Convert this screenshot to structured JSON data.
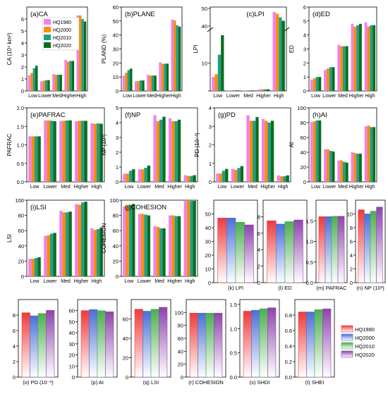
{
  "colors": {
    "HQ1980": "#ee82ee",
    "HQ2000": "#ff8c00",
    "HQ2010": "#1f9e89",
    "HQ2020": "#0b6e1e",
    "grad_top": [
      "#ee3b3b",
      "#4a6fd8",
      "#4caf50",
      "#8e44ad"
    ],
    "grad_bottom": "#ffffff"
  },
  "class_legend": [
    "HQ1980",
    "HQ2000",
    "HQ2010",
    "HQ2020"
  ],
  "landscape_legend": [
    "HQ1980",
    "HQ2000",
    "HQ2010",
    "HQ2020"
  ],
  "chart_data": [
    {
      "id": "a",
      "type": "bar",
      "title": "(a)CA",
      "ylabel": "CA (10⁴ km²)",
      "categories": [
        "Low",
        "Lower",
        "Med",
        "Higher",
        "High"
      ],
      "ylim": [
        0,
        7
      ],
      "ticks": [
        0,
        1,
        2,
        3,
        4,
        5,
        6
      ],
      "values": [
        [
          1.3,
          1.5,
          1.9,
          2.1
        ],
        [
          0.8,
          0.85,
          0.9,
          0.9
        ],
        [
          1.4,
          1.35,
          1.35,
          1.35
        ],
        [
          2.6,
          2.45,
          2.5,
          2.5
        ],
        [
          6.3,
          6.3,
          6.0,
          5.8
        ]
      ]
    },
    {
      "id": "b",
      "type": "bar",
      "title": "(b)PLANE",
      "ylabel": "PLAND (%)",
      "categories": [
        "Low",
        "Lower",
        "Med",
        "Higher",
        "High"
      ],
      "ylim": [
        0,
        60
      ],
      "ticks": [
        0,
        10,
        20,
        30,
        40,
        50,
        60
      ],
      "values": [
        [
          11,
          13,
          15,
          16
        ],
        [
          7,
          7,
          7.5,
          7.5
        ],
        [
          11.5,
          11,
          11,
          11
        ],
        [
          20.5,
          19.5,
          19.5,
          19.5
        ],
        [
          51,
          50.5,
          47,
          46
        ]
      ]
    },
    {
      "id": "c",
      "type": "bar",
      "title": "(c)LPI",
      "ylabel": "LPI",
      "categories": [
        "Low",
        "Lower",
        "Med",
        "Higher",
        "High"
      ],
      "broken_axis": true,
      "ticks": [
        0,
        10,
        40,
        50
      ],
      "values": [
        [
          5,
          6,
          13,
          20
        ],
        [
          0.1,
          0.2,
          0.2,
          0.2
        ],
        [
          0.1,
          0.2,
          0.2,
          0.2
        ],
        [
          0.5,
          0.6,
          0.6,
          0.6
        ],
        [
          48,
          47,
          45,
          43
        ]
      ]
    },
    {
      "id": "d",
      "type": "bar",
      "title": "(d)ED",
      "ylabel": "ED",
      "categories": [
        "Low",
        "Lower",
        "Med",
        "Higher",
        "High"
      ],
      "ylim": [
        0,
        6
      ],
      "ticks": [
        0,
        1,
        2,
        3,
        4,
        5,
        6
      ],
      "values": [
        [
          0.8,
          0.9,
          1.0,
          1.0
        ],
        [
          1.5,
          1.6,
          1.7,
          1.7
        ],
        [
          3.3,
          3.2,
          3.2,
          3.2
        ],
        [
          4.8,
          4.6,
          4.7,
          4.8
        ],
        [
          4.9,
          4.6,
          4.7,
          4.7
        ]
      ]
    },
    {
      "id": "e",
      "type": "bar",
      "title": "(e)PAFRAC",
      "ylabel": "PAFRAC",
      "categories": [
        "Low",
        "Lower",
        "Med",
        "Higher",
        "High"
      ],
      "ylim": [
        0,
        2.0
      ],
      "ticks": [
        0.0,
        0.5,
        1.0,
        1.5,
        2.0
      ],
      "values": [
        [
          1.23,
          1.23,
          1.23,
          1.23
        ],
        [
          1.66,
          1.66,
          1.65,
          1.64
        ],
        [
          1.65,
          1.65,
          1.66,
          1.66
        ],
        [
          1.64,
          1.65,
          1.65,
          1.65
        ],
        [
          1.58,
          1.57,
          1.58,
          1.57
        ]
      ]
    },
    {
      "id": "f",
      "type": "bar",
      "title": "(f)NP",
      "ylabel": "NP (10³)",
      "categories": [
        "Low",
        "Lower",
        "Med",
        "Higher",
        "High"
      ],
      "ylim": [
        0,
        5
      ],
      "ticks": [
        0,
        1,
        2,
        3,
        4,
        5
      ],
      "values": [
        [
          0.55,
          0.55,
          0.75,
          0.85
        ],
        [
          0.85,
          0.85,
          0.95,
          1.1
        ],
        [
          4.5,
          4.1,
          4.2,
          4.4
        ],
        [
          4.3,
          4.1,
          4.1,
          4.2
        ],
        [
          0.45,
          0.4,
          0.4,
          0.45
        ]
      ]
    },
    {
      "id": "g",
      "type": "bar",
      "title": "(g)PD",
      "ylabel": "PD (10⁻²)",
      "categories": [
        "Low",
        "Lower",
        "Med",
        "Higher",
        "High"
      ],
      "ylim": [
        0,
        4
      ],
      "ticks": [
        0,
        1,
        2,
        3,
        4
      ],
      "values": [
        [
          0.45,
          0.45,
          0.6,
          0.7
        ],
        [
          0.7,
          0.65,
          0.75,
          0.85
        ],
        [
          3.6,
          3.3,
          3.3,
          3.5
        ],
        [
          3.4,
          3.3,
          3.2,
          3.3
        ],
        [
          0.35,
          0.3,
          0.3,
          0.35
        ]
      ]
    },
    {
      "id": "h",
      "type": "bar",
      "title": "(h)AI",
      "ylabel": "AI",
      "categories": [
        "Low",
        "Lower",
        "Med",
        "Higher",
        "High"
      ],
      "ylim": [
        0,
        100
      ],
      "ticks": [
        0,
        20,
        40,
        60,
        80,
        100
      ],
      "values": [
        [
          81,
          82,
          83,
          83
        ],
        [
          44,
          44,
          42,
          41
        ],
        [
          29,
          29,
          27,
          26
        ],
        [
          40,
          39,
          38,
          38
        ],
        [
          75,
          76,
          74,
          74
        ]
      ]
    },
    {
      "id": "i",
      "type": "bar",
      "title": "(i)LSI",
      "ylabel": "LSI",
      "categories": [
        "Low",
        "Lower",
        "Med",
        "Higher",
        "High"
      ],
      "ylim": [
        0,
        100
      ],
      "ticks": [
        0,
        20,
        40,
        60,
        80,
        100
      ],
      "values": [
        [
          23,
          23,
          24,
          25
        ],
        [
          53,
          54,
          56,
          57
        ],
        [
          86,
          84,
          84,
          85
        ],
        [
          95,
          94,
          97,
          98
        ],
        [
          63,
          61,
          62,
          64
        ]
      ]
    },
    {
      "id": "j",
      "type": "bar",
      "title": "(j)COHESION",
      "ylabel": "COHESION",
      "categories": [
        "Low",
        "Lower",
        "Med",
        "Higher",
        "High"
      ],
      "ylim": [
        0,
        100
      ],
      "ticks": [
        0,
        20,
        40,
        60,
        80,
        100
      ],
      "values": [
        [
          92,
          93,
          94,
          95
        ],
        [
          82,
          82,
          81,
          80
        ],
        [
          66,
          65,
          63,
          63
        ],
        [
          80,
          80,
          79,
          79
        ],
        [
          99,
          99,
          99,
          99
        ]
      ]
    },
    {
      "id": "k",
      "type": "bar",
      "xlabel": "(k) LPI",
      "ylim": [
        0,
        60
      ],
      "ticks": [
        0,
        10,
        20,
        30,
        40,
        50
      ],
      "values": [
        47,
        47,
        44,
        42
      ]
    },
    {
      "id": "l",
      "type": "bar",
      "xlabel": "(l) ED",
      "ylim": [
        0,
        10
      ],
      "ticks": [
        0,
        2,
        4,
        6,
        8
      ],
      "values": [
        7.5,
        7.1,
        7.4,
        7.6
      ]
    },
    {
      "id": "m",
      "type": "bar",
      "xlabel": "(m) PAFRAC",
      "ylim": [
        0,
        2.0
      ],
      "ticks": [
        0.0,
        0.5,
        1.0,
        1.5
      ],
      "values": [
        1.6,
        1.6,
        1.61,
        1.61
      ]
    },
    {
      "id": "n",
      "type": "bar",
      "xlabel": "(n) NP (10³)",
      "ylim": [
        0,
        12
      ],
      "ticks": [
        0,
        2,
        4,
        6,
        8,
        10
      ],
      "values": [
        10.6,
        10.0,
        10.4,
        11.0
      ]
    },
    {
      "id": "o",
      "type": "bar",
      "xlabel": "(o) PD (10⁻²)",
      "ylim": [
        0,
        10
      ],
      "ticks": [
        0,
        2,
        4,
        6,
        8
      ],
      "values": [
        8.3,
        7.9,
        8.2,
        8.6
      ]
    },
    {
      "id": "p",
      "type": "bar",
      "xlabel": "(p) AI",
      "ylim": [
        0,
        70
      ],
      "ticks": [
        0,
        10,
        20,
        30,
        40,
        50,
        60
      ],
      "values": [
        60,
        61,
        60,
        59
      ]
    },
    {
      "id": "q",
      "type": "bar",
      "xlabel": "(q) LSI",
      "ylim": [
        0,
        80
      ],
      "ticks": [
        0,
        20,
        40,
        60
      ],
      "values": [
        70,
        68,
        70,
        72
      ]
    },
    {
      "id": "r",
      "type": "bar",
      "xlabel": "(r) COHESION",
      "ylim": [
        0,
        120
      ],
      "ticks": [
        0,
        20,
        40,
        60,
        80,
        100
      ],
      "values": [
        99,
        99,
        99,
        99
      ]
    },
    {
      "id": "s",
      "type": "bar",
      "xlabel": "(s) SHDI",
      "ylim": [
        0,
        1.6
      ],
      "ticks": [
        0.0,
        0.5,
        1.0,
        1.5
      ],
      "values": [
        1.36,
        1.38,
        1.41,
        1.43
      ]
    },
    {
      "id": "t",
      "type": "bar",
      "xlabel": "(t) SHEI",
      "ylim": [
        0,
        1.0
      ],
      "ticks": [
        0.0,
        0.2,
        0.4,
        0.6,
        0.8
      ],
      "values": [
        0.84,
        0.84,
        0.87,
        0.88
      ]
    }
  ]
}
